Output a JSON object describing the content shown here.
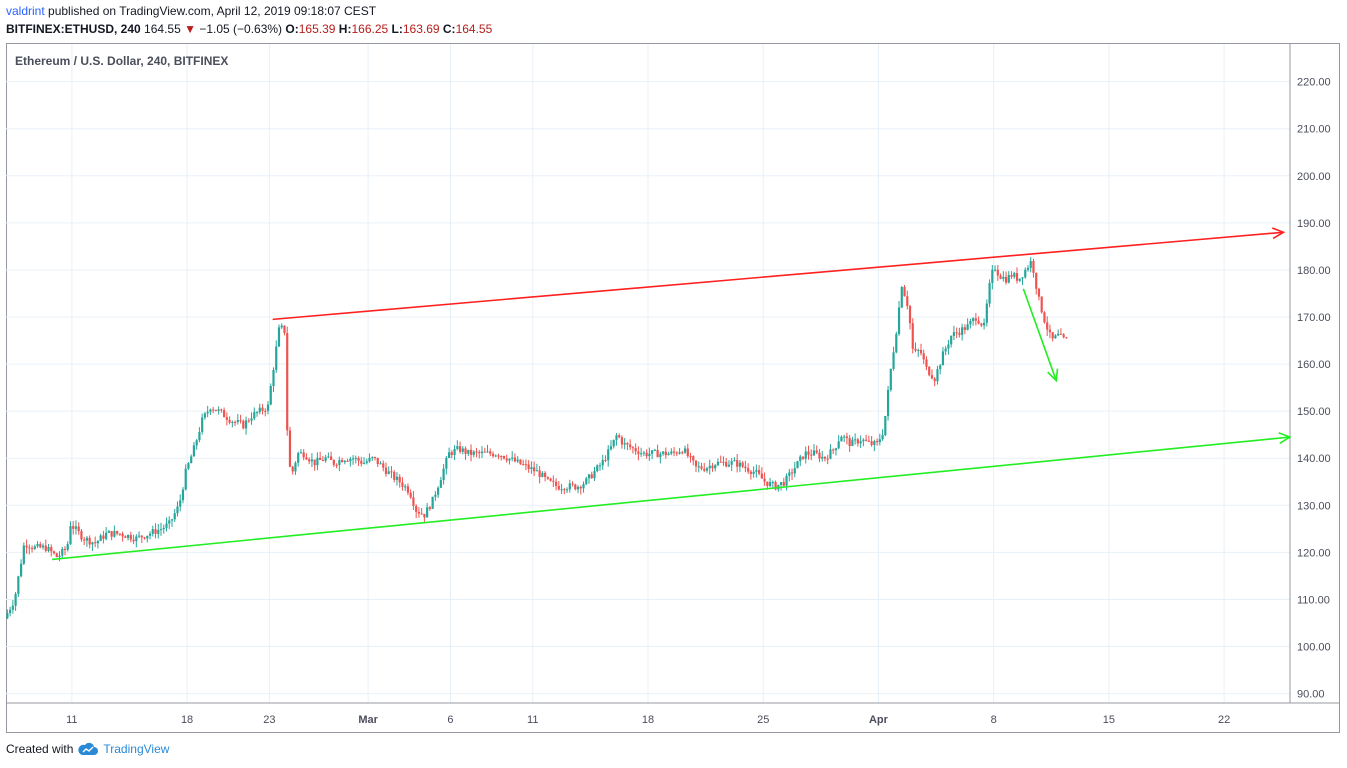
{
  "header": {
    "user": "valdrint",
    "published": "published on TradingView.com, April 12, 2019 09:18:07 CEST",
    "symbol": "BITFINEX:ETHUSD, 240",
    "last": "164.55",
    "arrow": "▼",
    "change": "−1.05 (−0.63%)",
    "o_label": "O:",
    "o_value": "165.39",
    "h_label": "H:",
    "h_value": "166.25",
    "l_label": "L:",
    "l_value": "163.69",
    "c_label": "C:",
    "c_value": "164.55"
  },
  "legend": "Ethereum / U.S. Dollar, 240, BITFINEX",
  "footer": {
    "created_with": "Created with",
    "brand": "TradingView"
  },
  "chart_data": {
    "type": "candlestick",
    "title": "Ethereum / U.S. Dollar, 240, BITFINEX",
    "ylim": [
      88,
      228
    ],
    "y_ticks": [
      "90.00",
      "100.00",
      "110.00",
      "120.00",
      "130.00",
      "140.00",
      "150.00",
      "160.00",
      "170.00",
      "180.00",
      "190.00",
      "200.00",
      "210.00",
      "220.00"
    ],
    "x_range_days": [
      7,
      85
    ],
    "x_ticks": [
      {
        "label": "11",
        "day": 11
      },
      {
        "label": "18",
        "day": 18
      },
      {
        "label": "23",
        "day": 23
      },
      {
        "label": "Mar",
        "day": 29
      },
      {
        "label": "6",
        "day": 34
      },
      {
        "label": "11",
        "day": 39
      },
      {
        "label": "18",
        "day": 46
      },
      {
        "label": "25",
        "day": 53
      },
      {
        "label": "Apr",
        "day": 60
      },
      {
        "label": "8",
        "day": 67
      },
      {
        "label": "15",
        "day": 74
      },
      {
        "label": "22",
        "day": 81
      }
    ],
    "price_path": [
      [
        7.0,
        106
      ],
      [
        7.6,
        110
      ],
      [
        8.2,
        122
      ],
      [
        8.8,
        121
      ],
      [
        9.5,
        121
      ],
      [
        10.2,
        119
      ],
      [
        10.8,
        121
      ],
      [
        11.0,
        126
      ],
      [
        11.8,
        123
      ],
      [
        12.5,
        122
      ],
      [
        13.2,
        124
      ],
      [
        14.0,
        124
      ],
      [
        15.0,
        123
      ],
      [
        15.8,
        124
      ],
      [
        16.5,
        125
      ],
      [
        17.0,
        126
      ],
      [
        17.6,
        130
      ],
      [
        18.0,
        137
      ],
      [
        18.5,
        142
      ],
      [
        19.0,
        148
      ],
      [
        19.5,
        151
      ],
      [
        20.0,
        150
      ],
      [
        20.8,
        148
      ],
      [
        21.5,
        147
      ],
      [
        22.0,
        149
      ],
      [
        22.5,
        150
      ],
      [
        23.0,
        151
      ],
      [
        23.4,
        161
      ],
      [
        23.7,
        168
      ],
      [
        24.0,
        167
      ],
      [
        24.2,
        142
      ],
      [
        24.4,
        136
      ],
      [
        24.8,
        141
      ],
      [
        25.2,
        141
      ],
      [
        25.8,
        139
      ],
      [
        26.5,
        140
      ],
      [
        27.0,
        139
      ],
      [
        27.6,
        140
      ],
      [
        28.2,
        140
      ],
      [
        28.8,
        139
      ],
      [
        29.4,
        140
      ],
      [
        30.0,
        138
      ],
      [
        30.6,
        136
      ],
      [
        31.0,
        135
      ],
      [
        31.6,
        133
      ],
      [
        32.0,
        129
      ],
      [
        32.5,
        128
      ],
      [
        33.0,
        131
      ],
      [
        33.5,
        136
      ],
      [
        34.0,
        141
      ],
      [
        34.6,
        142
      ],
      [
        35.2,
        141
      ],
      [
        35.8,
        141
      ],
      [
        36.4,
        141
      ],
      [
        37.0,
        141
      ],
      [
        37.6,
        140
      ],
      [
        38.2,
        139
      ],
      [
        38.8,
        138
      ],
      [
        39.4,
        137
      ],
      [
        40.0,
        135
      ],
      [
        40.6,
        134
      ],
      [
        41.2,
        134
      ],
      [
        41.8,
        134
      ],
      [
        42.3,
        135
      ],
      [
        42.8,
        137
      ],
      [
        43.3,
        139
      ],
      [
        43.8,
        142
      ],
      [
        44.2,
        145
      ],
      [
        44.6,
        143
      ],
      [
        45.2,
        142
      ],
      [
        45.8,
        141
      ],
      [
        46.4,
        141
      ],
      [
        47.0,
        141
      ],
      [
        47.6,
        141
      ],
      [
        48.2,
        142
      ],
      [
        48.6,
        140
      ],
      [
        49.0,
        138
      ],
      [
        49.6,
        138
      ],
      [
        50.2,
        139
      ],
      [
        50.8,
        139
      ],
      [
        51.4,
        139
      ],
      [
        52.0,
        138
      ],
      [
        52.6,
        137
      ],
      [
        53.2,
        135
      ],
      [
        53.8,
        134
      ],
      [
        54.4,
        135
      ],
      [
        55.0,
        138
      ],
      [
        55.6,
        141
      ],
      [
        56.2,
        141
      ],
      [
        56.8,
        140
      ],
      [
        57.4,
        142
      ],
      [
        57.8,
        145
      ],
      [
        58.4,
        143
      ],
      [
        59.0,
        144
      ],
      [
        59.6,
        143
      ],
      [
        60.0,
        143
      ],
      [
        60.4,
        146
      ],
      [
        60.8,
        158
      ],
      [
        61.2,
        168
      ],
      [
        61.5,
        177
      ],
      [
        61.9,
        172
      ],
      [
        62.2,
        162
      ],
      [
        62.6,
        163
      ],
      [
        63.0,
        159
      ],
      [
        63.5,
        157
      ],
      [
        64.0,
        162
      ],
      [
        64.5,
        166
      ],
      [
        65.0,
        167
      ],
      [
        65.5,
        168
      ],
      [
        66.0,
        170
      ],
      [
        66.5,
        168
      ],
      [
        66.8,
        176
      ],
      [
        67.1,
        181
      ],
      [
        67.4,
        179
      ],
      [
        67.8,
        178
      ],
      [
        68.2,
        179
      ],
      [
        68.6,
        178
      ],
      [
        69.0,
        180
      ],
      [
        69.4,
        182
      ],
      [
        69.8,
        174
      ],
      [
        70.2,
        169
      ],
      [
        70.6,
        165
      ],
      [
        71.0,
        166
      ],
      [
        71.4,
        165
      ]
    ],
    "trendlines": [
      {
        "color": "#ff2020",
        "from": [
          23.2,
          169.5
        ],
        "to": [
          84.6,
          188.0
        ],
        "arrow": true
      },
      {
        "color": "#22ee22",
        "from": [
          9.8,
          118.5
        ],
        "to": [
          85.0,
          144.5
        ],
        "arrow": true
      },
      {
        "color": "#22ee22",
        "from": [
          68.8,
          176.0
        ],
        "to": [
          70.8,
          156.5
        ],
        "arrow": true
      }
    ],
    "colors": {
      "up": "#26a69a",
      "down": "#ef5350",
      "grid": "#e8f0f7",
      "axis": "#9598a1"
    }
  }
}
